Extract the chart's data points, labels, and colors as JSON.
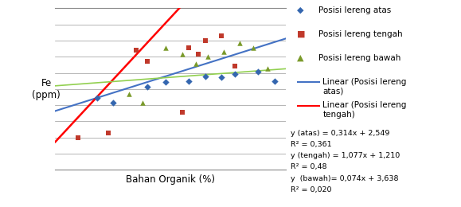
{
  "xlabel": "Bahan Organik (%)",
  "ylabel": "Fe\n(ppm)",
  "xlim": [
    0,
    10
  ],
  "ylim": [
    0,
    7
  ],
  "atas_x": [
    1.8,
    2.5,
    4.0,
    4.8,
    5.8,
    6.5,
    7.2,
    7.8,
    8.8,
    9.5
  ],
  "atas_y": [
    3.1,
    2.9,
    3.6,
    3.8,
    3.85,
    4.05,
    4.0,
    4.15,
    4.25,
    3.85
  ],
  "tengah_x": [
    1.0,
    2.3,
    3.5,
    4.0,
    5.5,
    5.8,
    6.2,
    6.5,
    7.2,
    7.8
  ],
  "tengah_y": [
    1.4,
    1.6,
    5.2,
    4.7,
    2.5,
    5.3,
    5.0,
    5.6,
    5.8,
    4.5
  ],
  "bawah_x": [
    3.2,
    3.8,
    4.8,
    5.5,
    6.1,
    6.6,
    7.3,
    8.0,
    8.6,
    9.2
  ],
  "bawah_y": [
    3.3,
    2.9,
    5.3,
    5.0,
    4.6,
    4.9,
    5.1,
    5.5,
    5.3,
    4.4
  ],
  "atas_color": "#3466AF",
  "tengah_color": "#C0392B",
  "bawah_color": "#7A9A2A",
  "line_atas_color": "#4472C4",
  "line_tengah_color": "#FF0000",
  "line_bawah_color": "#92D050",
  "legend_atas": "Posisi lereng atas",
  "legend_tengah": "Posisi lereng tengah",
  "legend_bawah": "Posisi lereng bawah",
  "legend_line_atas": "Linear (Posisi lereng\natas)",
  "legend_line_tengah": "Linear (Posisi lereng\ntengah)",
  "eq_atas_line1": "y (atas) = 0,314x + 2,549",
  "eq_atas_line2": "R² = 0,361",
  "eq_tengah_line1": "y (tengah) = 1,077x + 1,210",
  "eq_tengah_line2": "R² = 0,48",
  "eq_bawah_line1": "y  (bawah)= 0,074x + 3,638",
  "eq_bawah_line2": "R² = 0,020",
  "bg_color": "#FFFFFF",
  "grid_color": "#999999",
  "num_hlines": 10
}
